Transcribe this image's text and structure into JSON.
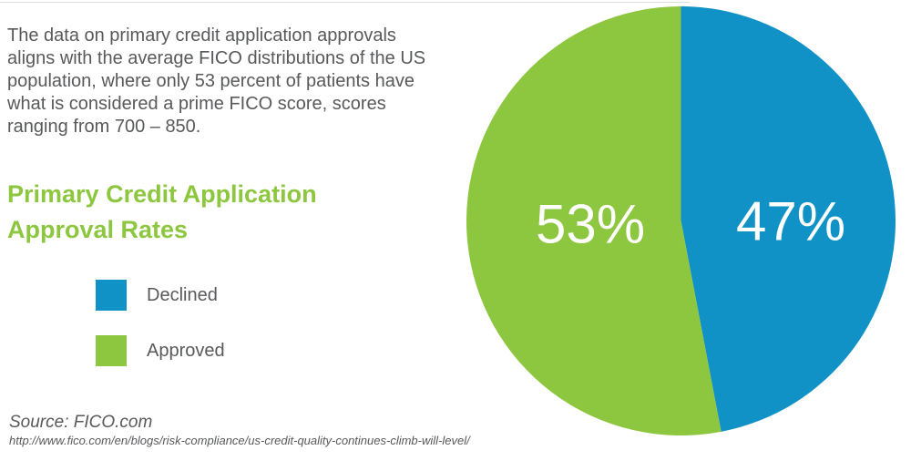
{
  "page": {
    "intro_lines": [
      "The data on primary credit application approvals",
      "aligns with the average FICO distributions of the US",
      "population, where only 53 percent of patients have",
      "what is considered a prime FICO score, scores",
      "ranging from 700 – 850."
    ],
    "heading_line1": "Primary Credit Application",
    "heading_line2": "Approval Rates",
    "source_label": "Source: FICO.com",
    "source_url": "http://www.fico.com/en/blogs/risk-compliance/us-credit-quality-continues-climb-will-level/"
  },
  "colors": {
    "green": "#8dc63f",
    "blue": "#1092c6",
    "text_gray": "#58595b"
  },
  "legend": {
    "items": [
      {
        "label": "Declined",
        "color": "#1092c6"
      },
      {
        "label": "Approved",
        "color": "#8dc63f"
      }
    ]
  },
  "chart_data": {
    "type": "pie",
    "title": "Primary Credit Application Approval Rates",
    "start_angle_deg": 0,
    "direction": "clockwise",
    "legend_position": "left",
    "data_labels": "inside",
    "slices": [
      {
        "label": "Declined",
        "value": 47,
        "data_label": "47%",
        "color": "#1092c6"
      },
      {
        "label": "Approved",
        "value": 53,
        "data_label": "53%",
        "color": "#8dc63f"
      }
    ]
  }
}
